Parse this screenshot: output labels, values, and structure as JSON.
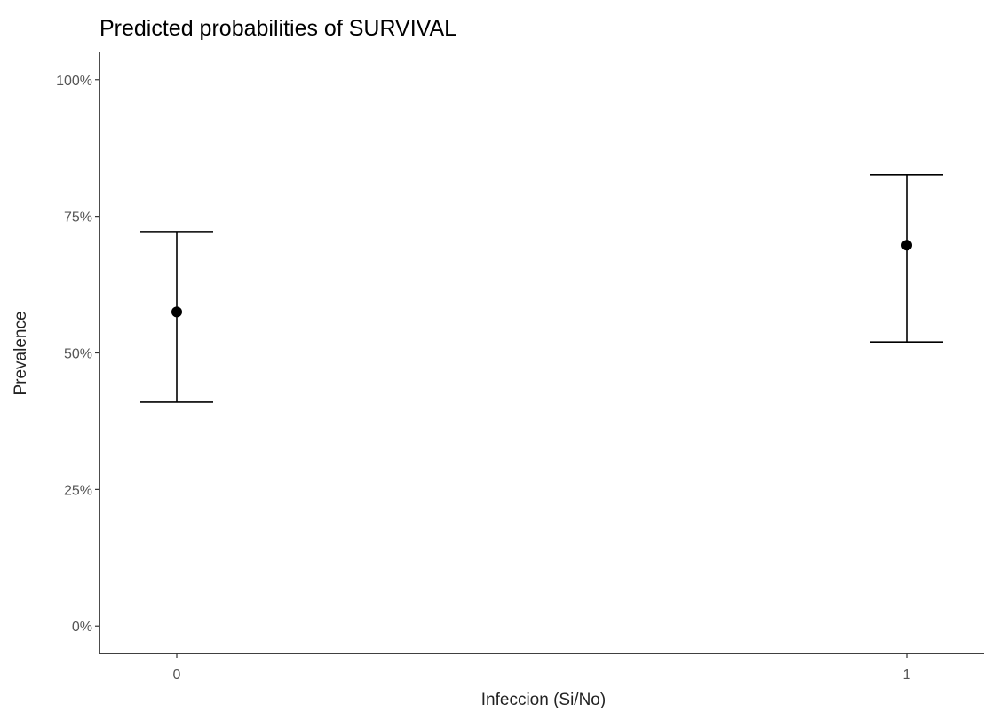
{
  "chart_data": {
    "type": "scatter",
    "title": "Predicted probabilities of SURVIVAL",
    "xlabel": "Infeccion (Si/No)",
    "ylabel": "Prevalence",
    "categories": [
      "0",
      "1"
    ],
    "series": [
      {
        "values": [
          0.575,
          0.697
        ],
        "lower": [
          0.41,
          0.52
        ],
        "upper": [
          0.722,
          0.826
        ]
      }
    ],
    "yticks": [
      0,
      0.25,
      0.5,
      0.75,
      1
    ],
    "ytick_labels": [
      "0%",
      "25%",
      "50%",
      "75%",
      "100%"
    ],
    "ylim": [
      -0.05,
      1.05
    ],
    "grid": false,
    "legend": "none"
  }
}
